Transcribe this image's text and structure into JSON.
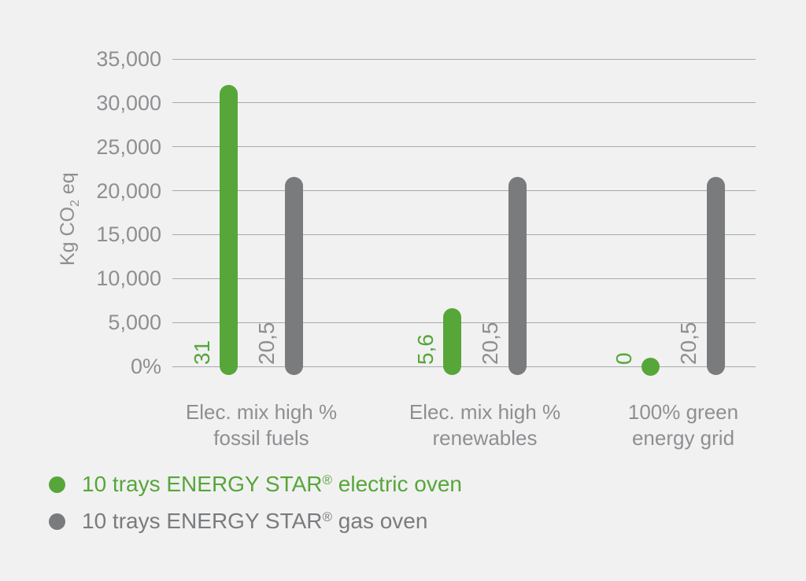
{
  "page": {
    "background": "#F1F1F2"
  },
  "chart_data": {
    "type": "bar",
    "title": "",
    "ylabel_text": "Kg CO2 eq",
    "ylabel": {
      "main": "Kg CO",
      "sub": "2",
      "rest": " eq"
    },
    "values_unit": "kg CO2 eq",
    "ylim": [
      0,
      35000
    ],
    "grid": true,
    "legend_position": "bottom-left",
    "y_ticks": [
      {
        "value": 35000,
        "label": "35,000"
      },
      {
        "value": 30000,
        "label": "30,000"
      },
      {
        "value": 25000,
        "label": "25,000"
      },
      {
        "value": 20000,
        "label": "20,000"
      },
      {
        "value": 15000,
        "label": "15,000"
      },
      {
        "value": 10000,
        "label": "10,000"
      },
      {
        "value": 5000,
        "label": "5,000"
      },
      {
        "value": 0,
        "label": "0%"
      }
    ],
    "categories": [
      {
        "line1": "Elec. mix high %",
        "line2": "fossil fuels"
      },
      {
        "line1": "Elec. mix high %",
        "line2": "renewables"
      },
      {
        "line1": "100% green",
        "line2": "energy grid"
      }
    ],
    "series": [
      {
        "name": "10 trays ENERGY STAR® electric oven",
        "color": "#57A639",
        "label_color": "#57A639",
        "values": [
          31000,
          5600,
          0
        ],
        "value_labels": [
          "31",
          "5,6",
          "0"
        ]
      },
      {
        "name": "10 trays ENERGY STAR® gas oven",
        "color": "#7A7B7D",
        "label_color": "#8E8F91",
        "values": [
          20500,
          20500,
          20500
        ],
        "value_labels": [
          "20,5",
          "20,5",
          "20,5"
        ]
      }
    ],
    "legend": [
      {
        "label_main": "10 trays ENERGY STAR",
        "label_reg": "®",
        "label_rest": " electric oven",
        "color": "#57A639"
      },
      {
        "label_main": "10 trays ENERGY STAR",
        "label_reg": "®",
        "label_rest": " gas oven",
        "color": "#7A7B7D"
      }
    ],
    "colors": {
      "grid": "#A7A8AA",
      "tick_text": "#8E8F91",
      "category_text": "#8E8F91",
      "axis_title_text": "#8E8F91",
      "background": "#F1F1F2"
    }
  }
}
